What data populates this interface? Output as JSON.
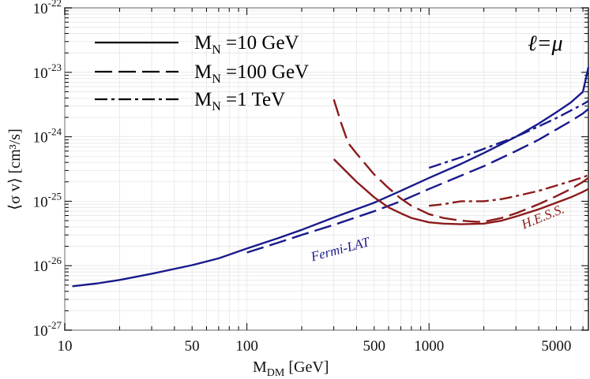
{
  "chart_data": {
    "type": "line",
    "xscale": "log",
    "yscale": "log",
    "xlim": [
      10,
      7500
    ],
    "ylim": [
      1e-27,
      1e-22
    ],
    "xlabel_main": "M",
    "xlabel_sub": "DM",
    "xlabel_unit": " [GeV]",
    "ylabel": "⟨σ v⟩ [cm³/s]",
    "x_ticks": [
      {
        "value": 10,
        "label": "10"
      },
      {
        "value": 50,
        "label": "50"
      },
      {
        "value": 100,
        "label": "100"
      },
      {
        "value": 500,
        "label": "500"
      },
      {
        "value": 1000,
        "label": "1000"
      },
      {
        "value": 5000,
        "label": "5000"
      }
    ],
    "y_ticks": [
      {
        "value": 1e-27,
        "base": "10",
        "exp": "-27"
      },
      {
        "value": 1e-26,
        "base": "10",
        "exp": "-26"
      },
      {
        "value": 1e-25,
        "base": "10",
        "exp": "-25"
      },
      {
        "value": 1e-24,
        "base": "10",
        "exp": "-24"
      },
      {
        "value": 1e-23,
        "base": "10",
        "exp": "-23"
      },
      {
        "value": 1e-22,
        "base": "10",
        "exp": "-22"
      }
    ],
    "grid": true,
    "legend_position": "top-left",
    "legend": [
      {
        "main": "M",
        "sub": "N",
        "rest": " =10 GeV",
        "dash": "solid"
      },
      {
        "main": "M",
        "sub": "N",
        "rest": " =100 GeV",
        "dash": "dashed"
      },
      {
        "main": "M",
        "sub": "N",
        "rest": " =1 TeV",
        "dash": "dashdot"
      }
    ],
    "flavor_label": "ℓ=μ",
    "annotations": [
      {
        "text": "Fermi-LAT",
        "x": 330,
        "y": 1.55e-26,
        "angle": -15,
        "color": "#1a1a8c"
      },
      {
        "text": "H.E.S.S.",
        "x": 4300,
        "y": 5e-26,
        "angle": -22,
        "color": "#8b1a1a"
      }
    ],
    "colors": {
      "fermi": "#1a1a8c",
      "hess": "#8b1a1a"
    },
    "series": [
      {
        "experiment": "Fermi-LAT",
        "dash": "solid",
        "color": "#1a1a8c",
        "x": [
          11,
          15,
          20,
          30,
          50,
          70,
          100,
          150,
          200,
          300,
          500,
          700,
          1000,
          1500,
          2000,
          3000,
          4000,
          5000,
          6000,
          7000,
          7500
        ],
        "y": [
          4.8e-27,
          5.3e-27,
          6e-27,
          7.5e-27,
          1.02e-26,
          1.3e-26,
          1.85e-26,
          2.7e-26,
          3.6e-26,
          5.6e-26,
          9.5e-26,
          1.45e-25,
          2.3e-25,
          3.8e-25,
          5.6e-25,
          1e-24,
          1.6e-24,
          2.4e-24,
          3.4e-24,
          5e-24,
          1.2e-23
        ]
      },
      {
        "experiment": "Fermi-LAT",
        "dash": "dashed",
        "color": "#1a1a8c",
        "x": [
          100,
          150,
          200,
          300,
          500,
          700,
          1000,
          1500,
          2000,
          3000,
          4000,
          5000,
          6000,
          7000,
          7500
        ],
        "y": [
          1.6e-26,
          2.3e-26,
          3e-26,
          4.3e-26,
          7e-26,
          1e-25,
          1.55e-25,
          2.5e-25,
          3.5e-25,
          6e-25,
          9e-25,
          1.3e-24,
          1.75e-24,
          2.3e-24,
          2.7e-24
        ]
      },
      {
        "experiment": "Fermi-LAT",
        "dash": "dashdot",
        "color": "#1a1a8c",
        "x": [
          1000,
          1500,
          2000,
          3000,
          4000,
          5000,
          6000,
          7000,
          7500
        ],
        "y": [
          3.3e-25,
          4.8e-25,
          6.5e-25,
          1e-24,
          1.45e-24,
          1.95e-24,
          2.55e-24,
          3.2e-24,
          3.6e-24
        ]
      },
      {
        "experiment": "H.E.S.S.",
        "dash": "solid",
        "color": "#8b1a1a",
        "x": [
          300,
          400,
          500,
          600,
          700,
          800,
          1000,
          1200,
          1500,
          2000,
          2500,
          3000,
          4000,
          5000,
          6000,
          7000,
          7500
        ],
        "y": [
          4.5e-25,
          2e-25,
          1.15e-25,
          8e-26,
          6.5e-26,
          5.5e-26,
          4.7e-26,
          4.5e-26,
          4.4e-26,
          4.5e-26,
          5e-26,
          5.8e-26,
          7.5e-26,
          9.5e-26,
          1.15e-25,
          1.4e-25,
          1.55e-25
        ]
      },
      {
        "experiment": "H.E.S.S.",
        "dash": "dashed",
        "color": "#8b1a1a",
        "x": [
          300,
          330,
          360,
          400,
          500,
          600,
          700,
          800,
          1000,
          1200,
          1500,
          1800,
          2000,
          2500,
          3000,
          4000,
          5000,
          6000,
          7000,
          7500
        ],
        "y": [
          3.8e-24,
          1.6e-24,
          8e-25,
          5.5e-25,
          2.6e-25,
          1.6e-25,
          1.1e-25,
          8.5e-26,
          6.3e-26,
          5.5e-26,
          5e-26,
          4.8e-26,
          4.8e-26,
          5.5e-26,
          6.5e-26,
          9e-26,
          1.2e-25,
          1.55e-25,
          2e-25,
          2.3e-25
        ]
      },
      {
        "experiment": "H.E.S.S.",
        "dash": "dashdot",
        "color": "#8b1a1a",
        "x": [
          1000,
          1200,
          1500,
          2000,
          2500,
          3000,
          4000,
          5000,
          6000,
          7000,
          7500
        ],
        "y": [
          8.5e-26,
          9e-26,
          1e-25,
          1e-25,
          1.08e-25,
          1.2e-25,
          1.45e-25,
          1.75e-25,
          2.05e-25,
          2.35e-25,
          2.55e-25
        ]
      }
    ]
  }
}
